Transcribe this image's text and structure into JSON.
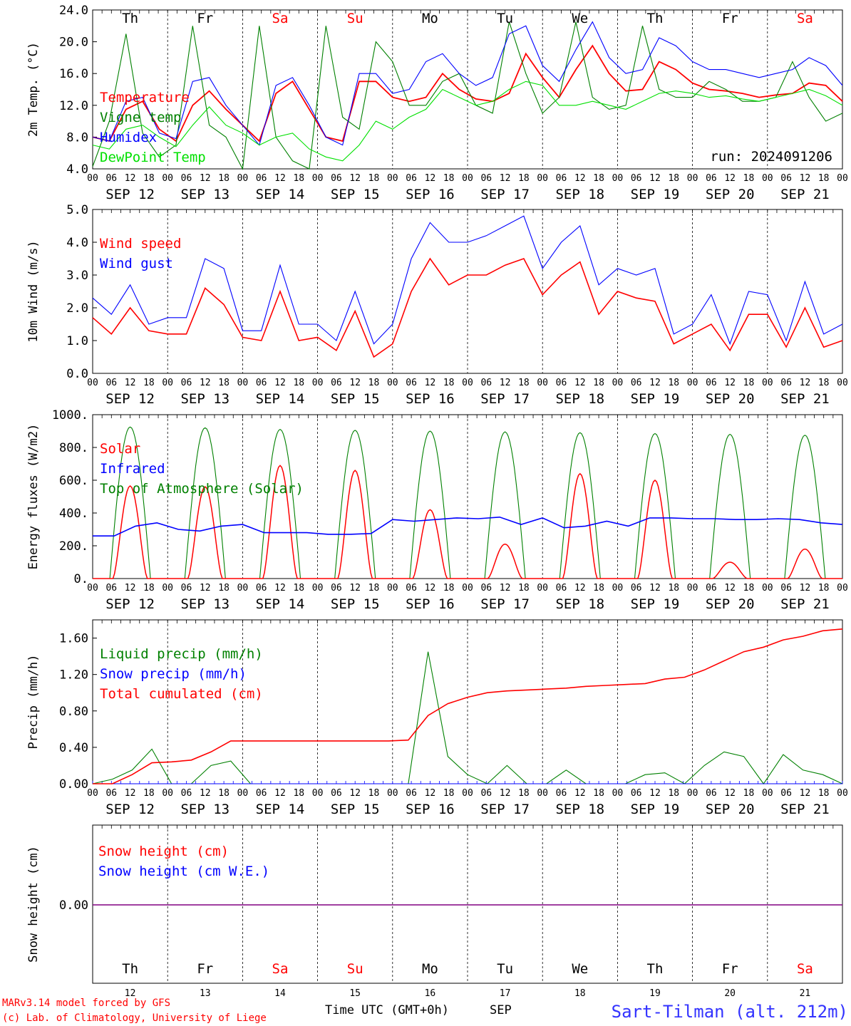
{
  "run_label": "run: 2024091206",
  "footer": {
    "credit_line1": "MARv3.14 model forced by GFS",
    "credit_line2": "(c) Lab. of Climatology, University of Liege",
    "xaxis_title": "Time UTC (GMT+0h)",
    "month": "SEP",
    "station": "Sart-Tilman (alt. 212m)"
  },
  "days": [
    {
      "abbr": "Th",
      "date": "SEP 12",
      "num": "12",
      "weekend": false
    },
    {
      "abbr": "Fr",
      "date": "SEP 13",
      "num": "13",
      "weekend": false
    },
    {
      "abbr": "Sa",
      "date": "SEP 14",
      "num": "14",
      "weekend": true
    },
    {
      "abbr": "Su",
      "date": "SEP 15",
      "num": "15",
      "weekend": true
    },
    {
      "abbr": "Mo",
      "date": "SEP 16",
      "num": "16",
      "weekend": false
    },
    {
      "abbr": "Tu",
      "date": "SEP 17",
      "num": "17",
      "weekend": false
    },
    {
      "abbr": "We",
      "date": "SEP 18",
      "num": "18",
      "weekend": false
    },
    {
      "abbr": "Th",
      "date": "SEP 19",
      "num": "19",
      "weekend": false
    },
    {
      "abbr": "Fr",
      "date": "SEP 20",
      "num": "20",
      "weekend": false
    },
    {
      "abbr": "Sa",
      "date": "SEP 21",
      "num": "21",
      "weekend": true
    }
  ],
  "hour_ticks": [
    "00",
    "06",
    "12",
    "18"
  ],
  "final_hour_tick": "00",
  "colors": {
    "red": "#ff0000",
    "darkgreen": "#008000",
    "blue": "#0000ff",
    "lightgreen": "#00e000",
    "purple": "#800080",
    "weekend": "#ff0000"
  },
  "chart_data": [
    {
      "type": "line",
      "id": "temperature",
      "ylabel": "2m Temp. (°C)",
      "ylim": [
        4,
        24
      ],
      "yticks": [
        "24.0",
        "20.0",
        "16.0",
        "12.0",
        "8.0",
        "4.0"
      ],
      "x_hours_per_point": 6,
      "series": [
        {
          "name": "Temperature",
          "color": "red",
          "values": [
            8.0,
            7.5,
            11.5,
            12.5,
            9.0,
            7.5,
            12.0,
            13.8,
            11.5,
            9.5,
            7.5,
            13.5,
            15.0,
            11.5,
            8.0,
            7.5,
            15.0,
            15.0,
            13.0,
            12.5,
            13.0,
            16.0,
            14.0,
            12.8,
            12.5,
            13.5,
            18.5,
            15.5,
            13.0,
            16.5,
            19.5,
            16.0,
            13.8,
            14.0,
            17.5,
            16.5,
            14.8,
            14.0,
            13.8,
            13.5,
            13.0,
            13.3,
            13.5,
            14.8,
            14.5,
            12.5
          ]
        },
        {
          "name": "Vigne temp",
          "color": "darkgreen",
          "values": [
            4.3,
            10.0,
            21.0,
            8.5,
            5.5,
            7.0,
            22.0,
            9.5,
            8.0,
            4.0,
            22.0,
            8.0,
            5.0,
            4.0,
            22.0,
            10.5,
            9.0,
            20.0,
            17.5,
            12.0,
            12.0,
            15.0,
            16.0,
            12.0,
            11.0,
            22.5,
            16.0,
            11.0,
            13.0,
            22.5,
            13.0,
            11.5,
            12.0,
            22.0,
            14.0,
            13.0,
            13.0,
            15.0,
            14.0,
            12.5,
            12.5,
            13.0,
            17.5,
            13.0,
            10.0,
            11.0
          ]
        },
        {
          "name": "Humidex",
          "color": "blue",
          "values": [
            8.0,
            7.5,
            12.5,
            13.0,
            8.5,
            7.8,
            15.0,
            15.5,
            12.0,
            9.5,
            7.0,
            14.5,
            15.5,
            12.0,
            8.0,
            7.0,
            16.0,
            16.0,
            13.5,
            14.0,
            17.5,
            18.5,
            16.0,
            14.5,
            15.5,
            21.0,
            22.0,
            17.0,
            15.0,
            19.0,
            22.5,
            18.0,
            16.0,
            16.5,
            20.5,
            19.5,
            17.5,
            16.5,
            16.5,
            16.0,
            15.5,
            16.0,
            16.5,
            18.0,
            17.0,
            14.5
          ]
        },
        {
          "name": "DewPoint Temp",
          "color": "lightgreen",
          "values": [
            7.0,
            6.5,
            9.0,
            9.5,
            8.0,
            6.8,
            9.5,
            11.8,
            9.5,
            8.5,
            7.0,
            8.0,
            8.5,
            6.5,
            5.5,
            5.0,
            7.0,
            10.0,
            9.0,
            10.5,
            11.5,
            14.0,
            13.0,
            12.0,
            12.5,
            14.0,
            15.0,
            14.5,
            12.0,
            12.0,
            12.5,
            12.0,
            11.5,
            12.5,
            13.5,
            13.8,
            13.5,
            13.0,
            13.2,
            12.8,
            12.5,
            13.0,
            13.5,
            14.0,
            13.2,
            12.0
          ]
        }
      ]
    },
    {
      "type": "line",
      "id": "wind",
      "ylabel": "10m Wind (m/s)",
      "ylim": [
        0,
        5
      ],
      "yticks": [
        "5.0",
        "4.0",
        "3.0",
        "2.0",
        "1.0",
        "0.0"
      ],
      "x_hours_per_point": 6,
      "series": [
        {
          "name": "Wind speed",
          "color": "red",
          "values": [
            1.7,
            1.2,
            2.0,
            1.3,
            1.2,
            1.2,
            2.6,
            2.1,
            1.1,
            1.0,
            2.5,
            1.0,
            1.1,
            0.7,
            1.9,
            0.5,
            0.9,
            2.5,
            3.5,
            2.7,
            3.0,
            3.0,
            3.3,
            3.5,
            2.4,
            3.0,
            3.4,
            1.8,
            2.5,
            2.3,
            2.2,
            0.9,
            1.2,
            1.5,
            0.7,
            1.8,
            1.8,
            0.8,
            2.0,
            0.8,
            1.0
          ]
        },
        {
          "name": "Wind gust",
          "color": "blue",
          "values": [
            2.3,
            1.8,
            2.7,
            1.5,
            1.7,
            1.7,
            3.5,
            3.2,
            1.3,
            1.3,
            3.3,
            1.5,
            1.5,
            1.0,
            2.5,
            0.9,
            1.5,
            3.5,
            4.6,
            4.0,
            4.0,
            4.2,
            4.5,
            4.8,
            3.2,
            4.0,
            4.5,
            2.7,
            3.2,
            3.0,
            3.2,
            1.2,
            1.5,
            2.4,
            0.9,
            2.5,
            2.4,
            1.0,
            2.8,
            1.2,
            1.5
          ]
        }
      ]
    },
    {
      "type": "line",
      "id": "energy",
      "ylabel": "Energy fluxes (W/m2)",
      "ylim": [
        0,
        1000
      ],
      "yticks": [
        "1000.",
        "800.",
        "600.",
        "400.",
        "200.",
        "0."
      ],
      "daily_peaks": {
        "solar": [
          565,
          560,
          690,
          660,
          420,
          210,
          640,
          600,
          100,
          180
        ],
        "top_of_atmosphere": [
          925,
          920,
          910,
          905,
          900,
          895,
          890,
          885,
          880,
          875
        ]
      },
      "infrared_values": [
        260,
        260,
        320,
        340,
        300,
        290,
        320,
        330,
        280,
        280,
        280,
        270,
        270,
        275,
        360,
        350,
        360,
        370,
        365,
        375,
        330,
        370,
        310,
        320,
        350,
        320,
        370,
        370,
        365,
        365,
        360,
        360,
        365,
        360,
        340,
        330
      ],
      "series": [
        {
          "name": "Solar",
          "color": "red"
        },
        {
          "name": "Infrared",
          "color": "blue"
        },
        {
          "name": "Top of Atmosphere (Solar)",
          "color": "darkgreen"
        }
      ]
    },
    {
      "type": "line",
      "id": "precip",
      "ylabel": "Precip (mm/h)",
      "ylim": [
        0,
        1.8
      ],
      "yticks": [
        "1.60",
        "1.20",
        "0.80",
        "0.40",
        "0.00"
      ],
      "x_hours_per_point": 6,
      "series": [
        {
          "name": "Liquid precip (mm/h)",
          "color": "darkgreen",
          "values": [
            0,
            0.05,
            0.15,
            0.38,
            0,
            0,
            0.2,
            0.25,
            0,
            0,
            0,
            0,
            0,
            0,
            0,
            0,
            0,
            1.45,
            0.3,
            0.1,
            0,
            0.2,
            0,
            0,
            0.15,
            0,
            0,
            0,
            0.1,
            0.12,
            0,
            0.2,
            0.35,
            0.3,
            0,
            0.32,
            0.15,
            0.1,
            0
          ]
        },
        {
          "name": "Snow precip (mm/h)",
          "color": "blue",
          "values": [
            0,
            0
          ]
        },
        {
          "name": "Total cumulated (cm)",
          "color": "red",
          "values": [
            0,
            0,
            0.1,
            0.23,
            0.24,
            0.26,
            0.35,
            0.47,
            0.47,
            0.47,
            0.47,
            0.47,
            0.47,
            0.47,
            0.47,
            0.47,
            0.48,
            0.75,
            0.88,
            0.95,
            1.0,
            1.02,
            1.03,
            1.04,
            1.05,
            1.07,
            1.08,
            1.09,
            1.1,
            1.15,
            1.17,
            1.25,
            1.35,
            1.45,
            1.5,
            1.58,
            1.62,
            1.68,
            1.7
          ]
        }
      ]
    },
    {
      "type": "line",
      "id": "snow",
      "ylabel": "Snow height (cm)",
      "yticks": [
        "0.00"
      ],
      "series": [
        {
          "name": "Snow height (cm)",
          "color": "red",
          "values": [
            0,
            0
          ]
        },
        {
          "name": "Snow height (cm W.E.)",
          "color": "blue",
          "values": [
            0,
            0
          ]
        }
      ]
    }
  ]
}
